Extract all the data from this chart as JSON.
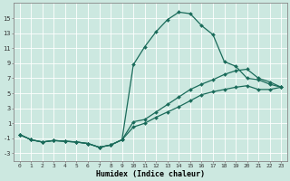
{
  "xlabel": "Humidex (Indice chaleur)",
  "bg_color": "#cce8e0",
  "line_color": "#1a6b5a",
  "grid_color": "#ffffff",
  "xlim": [
    -0.5,
    23.5
  ],
  "ylim": [
    -4.0,
    17.0
  ],
  "xticks": [
    0,
    1,
    2,
    3,
    4,
    5,
    6,
    7,
    8,
    9,
    10,
    11,
    12,
    13,
    14,
    15,
    16,
    17,
    18,
    19,
    20,
    21,
    22,
    23
  ],
  "yticks": [
    -3,
    -1,
    1,
    3,
    5,
    7,
    9,
    11,
    13,
    15
  ],
  "curve1_x": [
    0,
    1,
    2,
    3,
    4,
    5,
    6,
    7,
    8,
    9,
    10,
    11,
    12,
    13,
    14,
    15,
    16,
    17,
    18,
    19,
    20,
    21,
    22,
    23
  ],
  "curve1_y": [
    -0.5,
    -1.2,
    -1.5,
    -1.3,
    -1.4,
    -1.5,
    -1.7,
    -2.2,
    -1.9,
    -1.2,
    8.8,
    11.2,
    13.2,
    14.8,
    15.8,
    15.6,
    14.0,
    12.8,
    9.2,
    8.6,
    7.0,
    6.8,
    6.2,
    5.8
  ],
  "curve2_x": [
    0,
    1,
    2,
    3,
    4,
    5,
    6,
    7,
    8,
    9,
    10,
    11,
    12,
    13,
    14,
    15,
    16,
    17,
    18,
    19,
    20,
    21,
    22,
    23
  ],
  "curve2_y": [
    -0.5,
    -1.2,
    -1.5,
    -1.3,
    -1.4,
    -1.5,
    -1.7,
    -2.2,
    -1.9,
    -1.2,
    1.2,
    1.5,
    2.5,
    3.5,
    4.5,
    5.5,
    6.2,
    6.8,
    7.5,
    8.0,
    8.2,
    7.0,
    6.5,
    5.8
  ],
  "curve3_x": [
    0,
    1,
    2,
    3,
    4,
    5,
    6,
    7,
    8,
    9,
    10,
    11,
    12,
    13,
    14,
    15,
    16,
    17,
    18,
    19,
    20,
    21,
    22,
    23
  ],
  "curve3_y": [
    -0.5,
    -1.2,
    -1.5,
    -1.3,
    -1.4,
    -1.5,
    -1.7,
    -2.2,
    -1.9,
    -1.2,
    0.5,
    1.0,
    1.8,
    2.5,
    3.2,
    4.0,
    4.8,
    5.2,
    5.5,
    5.8,
    6.0,
    5.5,
    5.5,
    5.8
  ]
}
